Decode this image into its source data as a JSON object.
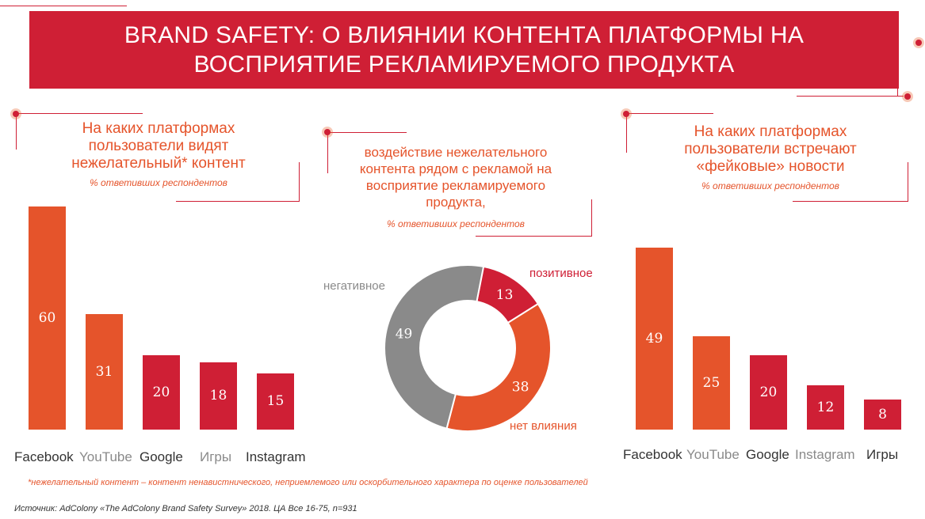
{
  "header": {
    "title_line1": "BRAND SAFETY: О ВЛИЯНИИ КОНТЕНТА ПЛАТФОРМЫ НА",
    "title_line2": "ВОСПРИЯТИЕ РЕКЛАМИРУЕМОГО ПРОДУКТА"
  },
  "colors": {
    "accent": "#cf1f35",
    "orange": "#e5542b",
    "gray": "#8a8a8a"
  },
  "left_panel": {
    "title_lines": [
      "На каких платформах",
      "пользователи видят",
      "нежелательный* контент"
    ],
    "subtitle": "% ответивших респондентов"
  },
  "middle_panel": {
    "title_lines": [
      "воздействие нежелательного",
      "контента рядом с рекламой на",
      "восприятие рекламируемого",
      "продукта,"
    ],
    "subtitle": "% ответивших респондентов"
  },
  "right_panel": {
    "title_lines": [
      "На каких платформах",
      "пользователи встречают",
      "«фейковые» новости"
    ],
    "subtitle": "% ответивших респондентов"
  },
  "chart_data": [
    {
      "type": "bar",
      "categories": [
        "Facebook",
        "YouTube",
        "Google",
        "Игры",
        "Instagram"
      ],
      "values": [
        60,
        31,
        20,
        18,
        15
      ],
      "bar_colors": [
        "#e5542b",
        "#e5542b",
        "#cf1f35",
        "#cf1f35",
        "#cf1f35"
      ],
      "label_colors": [
        "#333333",
        "#8a8a8a",
        "#333333",
        "#8a8a8a",
        "#333333"
      ],
      "title": "На каких платформах пользователи видят нежелательный* контент"
    },
    {
      "type": "pie",
      "style": "donut",
      "labels": [
        "позитивное",
        "нет влияния",
        "негативное"
      ],
      "values": [
        13,
        38,
        49
      ],
      "colors": [
        "#cf1f35",
        "#e5542b",
        "#8a8a8a"
      ],
      "title": "воздействие нежелательного контента рядом с рекламой на восприятие рекламируемого продукта,"
    },
    {
      "type": "bar",
      "categories": [
        "Facebook",
        "YouTube",
        "Google",
        "Instagram",
        "Игры"
      ],
      "values": [
        49,
        25,
        20,
        12,
        8
      ],
      "bar_colors": [
        "#e5542b",
        "#e5542b",
        "#cf1f35",
        "#cf1f35",
        "#cf1f35"
      ],
      "label_colors": [
        "#333333",
        "#8a8a8a",
        "#333333",
        "#8a8a8a",
        "#333333"
      ],
      "title": "На каких платформах пользователи встречают «фейковые» новости"
    }
  ],
  "footnote": "*нежелательный контент –  контент ненавистнического, неприемлемого или оскорбительного характера по оценке пользователей",
  "source": "Источник: AdColony «The AdColony Brand Safety Survey» 2018. ЦА Все 16-75, n=931"
}
